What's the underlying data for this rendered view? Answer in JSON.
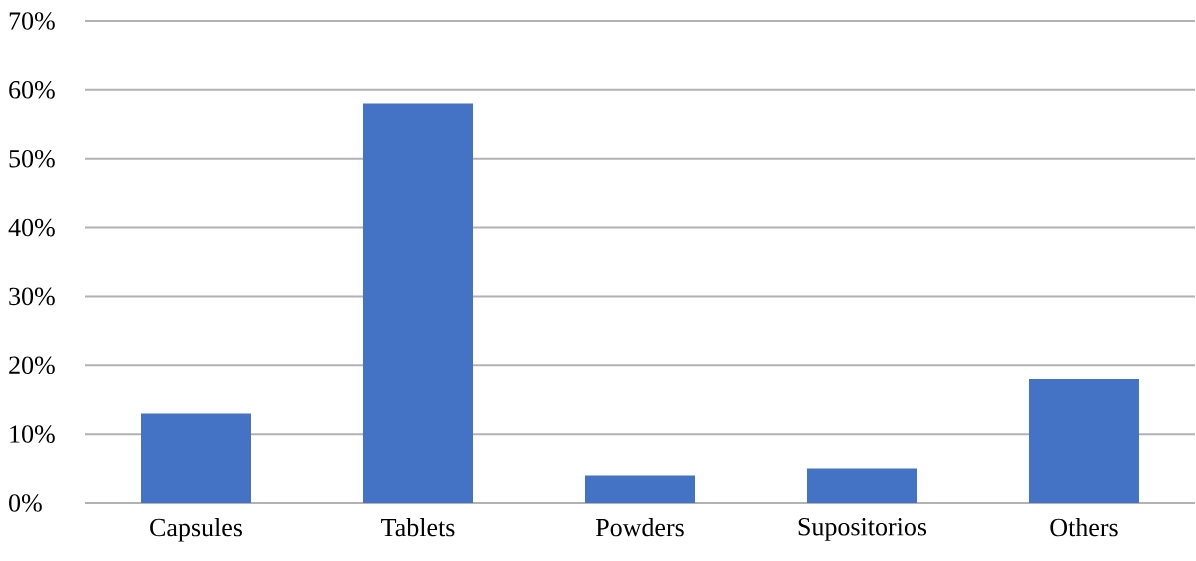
{
  "chart_data": {
    "type": "bar",
    "categories": [
      "Capsules",
      "Tablets",
      "Powders",
      "Supositorios",
      "Others"
    ],
    "values": [
      13,
      58,
      4,
      5,
      18
    ],
    "color": "#4472c4",
    "ylim": [
      0,
      70
    ],
    "yticks": [
      {
        "value": 0,
        "label": "0%"
      },
      {
        "value": 10,
        "label": "10%"
      },
      {
        "value": 20,
        "label": "20%"
      },
      {
        "value": 30,
        "label": "30%"
      },
      {
        "value": 40,
        "label": "40%"
      },
      {
        "value": 50,
        "label": "50%"
      },
      {
        "value": 60,
        "label": "60%"
      },
      {
        "value": 70,
        "label": "70%"
      }
    ],
    "grid": "y"
  }
}
